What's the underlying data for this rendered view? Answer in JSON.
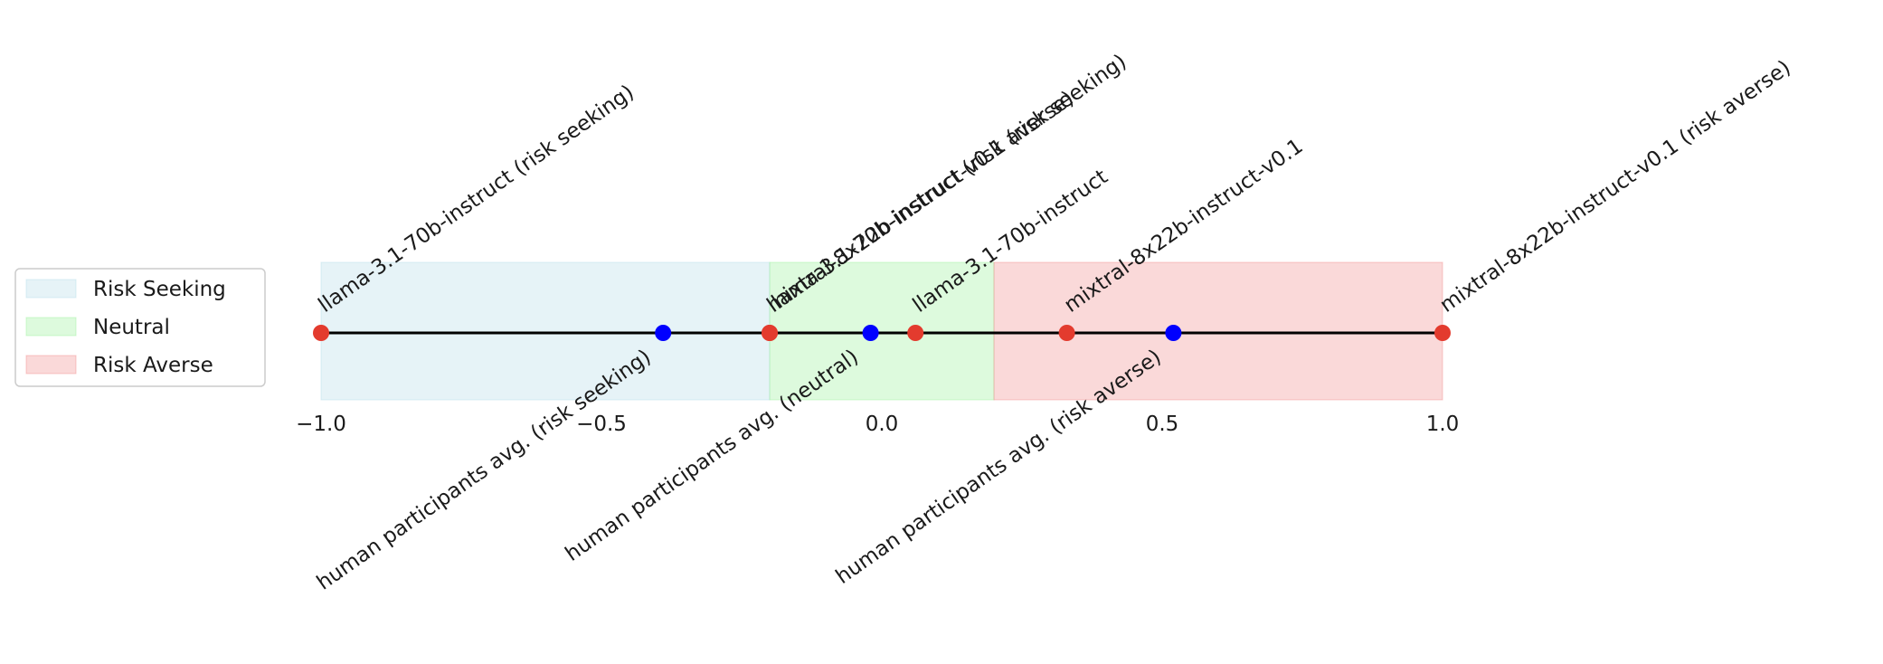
{
  "chart_data": {
    "type": "number_line",
    "xlim": [
      -1,
      1
    ],
    "xticks": [
      {
        "value": -1,
        "label": "−1.0"
      },
      {
        "value": -0.5,
        "label": "−0.5"
      },
      {
        "value": 0,
        "label": "0.0"
      },
      {
        "value": 0.5,
        "label": "0.5"
      },
      {
        "value": 1,
        "label": "1.0"
      }
    ],
    "line_color": "#000000",
    "regions": [
      {
        "name": "Risk Seeking",
        "color": "#add8e6",
        "range": [
          -1,
          -0.2
        ]
      },
      {
        "name": "Neutral",
        "color": "#90ee90",
        "range": [
          -0.2,
          0.2
        ]
      },
      {
        "name": "Risk Averse",
        "color": "#f08080",
        "range": [
          0.2,
          1
        ]
      }
    ],
    "legend": "left",
    "points": [
      {
        "label": "llama-3.1-70b-instruct (risk seeking)",
        "x": -1.0,
        "color": "#e33b2e",
        "side": "above"
      },
      {
        "label": "llama-3.1-70b-instruct (risk averse)",
        "x": -0.2,
        "color": "#e33b2e",
        "side": "above"
      },
      {
        "label": "mixtral-8x22b-instruct-v0.1 (risk seeking)",
        "x": -0.2,
        "color": "#e33b2e",
        "side": "above"
      },
      {
        "label": "llama-3.1-70b-instruct",
        "x": 0.06,
        "color": "#e33b2e",
        "side": "above"
      },
      {
        "label": "mixtral-8x22b-instruct-v0.1",
        "x": 0.33,
        "color": "#e33b2e",
        "side": "above"
      },
      {
        "label": "mixtral-8x22b-instruct-v0.1 (risk averse)",
        "x": 1.0,
        "color": "#e33b2e",
        "side": "above"
      },
      {
        "label": "human participants avg. (risk seeking)",
        "x": -0.39,
        "color": "#0000ff",
        "side": "below"
      },
      {
        "label": "human participants avg. (neutral)",
        "x": -0.02,
        "color": "#0000ff",
        "side": "below"
      },
      {
        "label": "human participants avg. (risk averse)",
        "x": 0.52,
        "color": "#0000ff",
        "side": "below"
      }
    ]
  }
}
